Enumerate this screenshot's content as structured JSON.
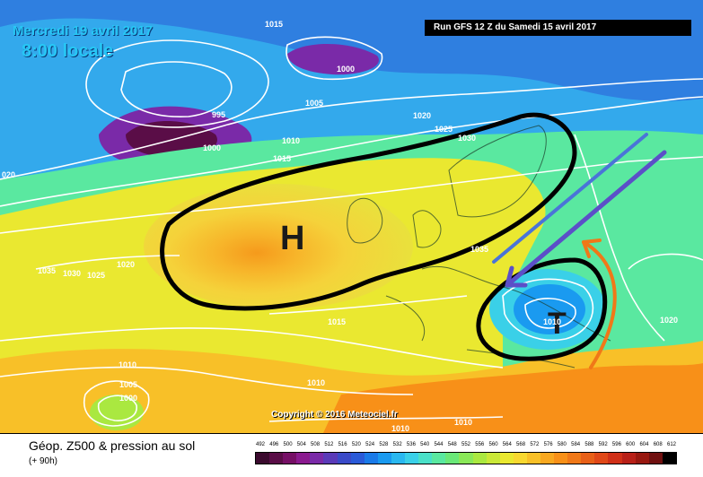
{
  "header": {
    "date": "Mercredi 19 avril 2017",
    "time": "8:00 locale",
    "run": "Run GFS 12 Z du Samedi 15 avril 2017"
  },
  "copyright": "Copyright © 2016 Meteociel.fr",
  "centers": {
    "high": "H",
    "low": "T"
  },
  "isobar_labels": [
    "1015",
    "1000",
    "1005",
    "995",
    "1000",
    "1010",
    "1015",
    "1020",
    "1025",
    "1030",
    "020",
    "1035",
    "1030",
    "1025",
    "1020",
    "1035",
    "1015",
    "1010",
    "1010",
    "1005",
    "1000",
    "1010",
    "1010",
    "1020",
    "1010"
  ],
  "legend": {
    "title": "Géop. Z500 & pression au sol",
    "subtitle": "(+ 90h)",
    "scale_labels": [
      "492",
      "496",
      "500",
      "504",
      "508",
      "512",
      "516",
      "520",
      "524",
      "528",
      "532",
      "536",
      "540",
      "544",
      "548",
      "552",
      "556",
      "560",
      "564",
      "568",
      "572",
      "576",
      "580",
      "584",
      "588",
      "592",
      "596",
      "600",
      "604",
      "608",
      "612"
    ],
    "scale_colors": [
      "#3b0a2e",
      "#5a0d47",
      "#760f66",
      "#8a1a8f",
      "#7a2aa8",
      "#5a3ab8",
      "#3a4ac8",
      "#2a5ad8",
      "#1a7ae8",
      "#1a9af0",
      "#2ab8f0",
      "#3ad0e8",
      "#4ae0c8",
      "#5ae8a0",
      "#6ae878",
      "#8ae858",
      "#aae840",
      "#cae838",
      "#eae830",
      "#f8d830",
      "#f8c028",
      "#f8a820",
      "#f89018",
      "#f07818",
      "#e86018",
      "#e04818",
      "#d03018",
      "#b82018",
      "#981810",
      "#701010",
      "#000000"
    ]
  }
}
